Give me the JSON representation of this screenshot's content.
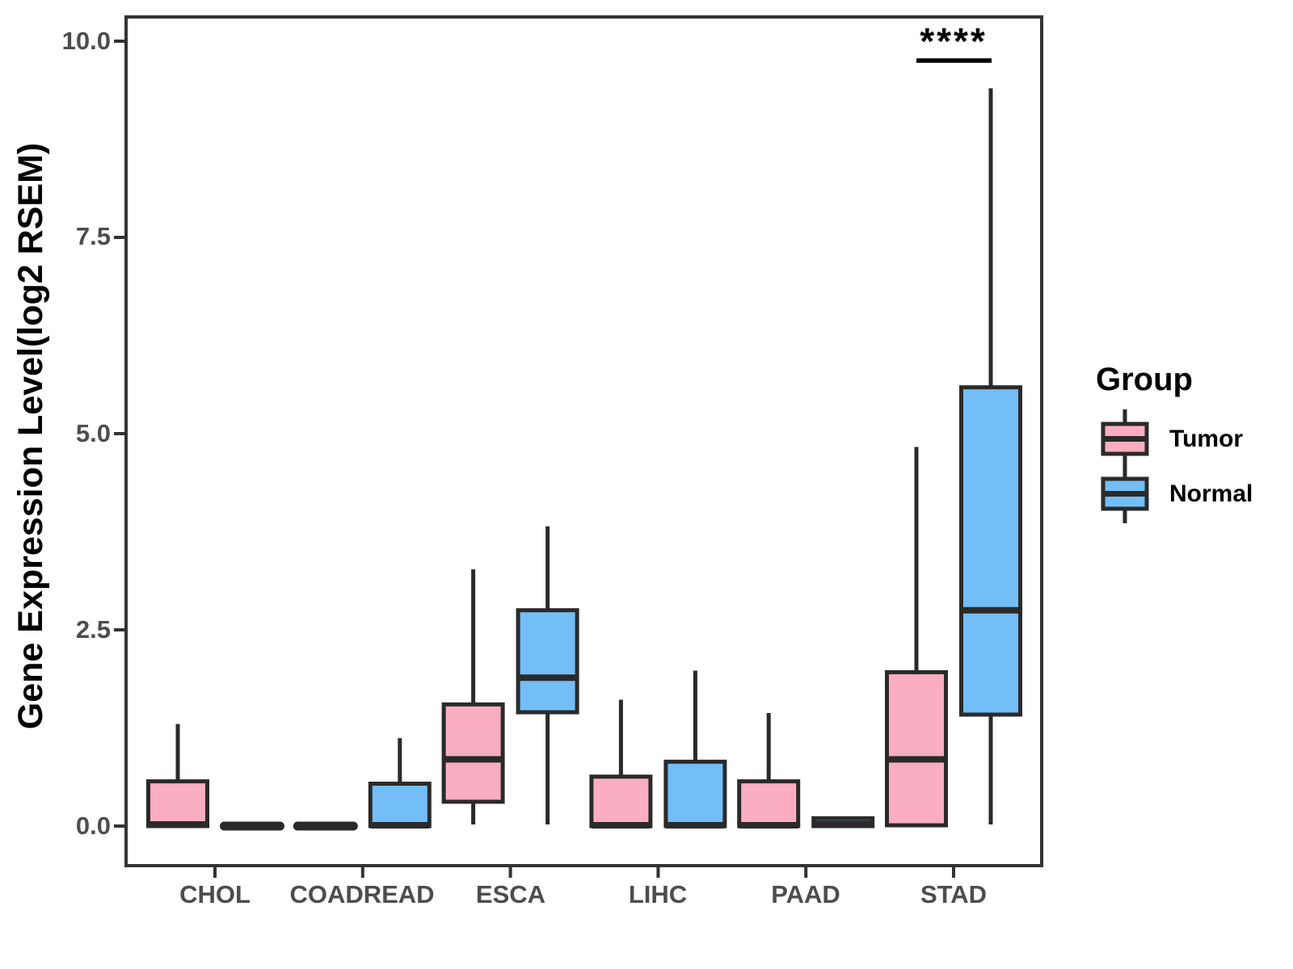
{
  "figure": {
    "background": "#ffffff"
  },
  "axes": {
    "y": {
      "title": "Gene Expression Level(log2 RSEM)",
      "ticks": [
        "10.0",
        "7.5",
        "5.0",
        "2.5",
        "0.0"
      ],
      "tick_values": [
        10.0,
        7.5,
        5.0,
        2.5,
        0.0
      ]
    },
    "x": {
      "categories": [
        "CHOL",
        "COADREAD",
        "ESCA",
        "LIHC",
        "PAAD",
        "STAD"
      ]
    }
  },
  "legend": {
    "title": "Group",
    "entries": [
      {
        "label": "Tumor",
        "color": "#FBAEC1"
      },
      {
        "label": "Normal",
        "color": "#73BEF7"
      }
    ]
  },
  "annotation": {
    "text": "****",
    "category": "STAD"
  },
  "colors": {
    "tumor_fill": "#FBAEC1",
    "normal_fill": "#73BEF7",
    "box_stroke": "#2A2A2A",
    "axis_stroke": "#333333",
    "tick_text": "#4d4d4d"
  },
  "chart_data": {
    "type": "boxplot",
    "title": "",
    "xlabel": "",
    "ylabel": "Gene Expression Level(log2 RSEM)",
    "ylim": [
      -0.5,
      10.3
    ],
    "grid": false,
    "legend_position": "right",
    "categories": [
      "CHOL",
      "COADREAD",
      "ESCA",
      "LIHC",
      "PAAD",
      "STAD"
    ],
    "series": [
      {
        "name": "Tumor",
        "color": "#FBAEC1",
        "boxes": [
          {
            "min": 0.0,
            "q1": 0.0,
            "median": 0.02,
            "q3": 0.57,
            "max": 1.3
          },
          {
            "min": 0.0,
            "q1": 0.0,
            "median": 0.0,
            "q3": 0.0,
            "max": 0.0
          },
          {
            "min": 0.02,
            "q1": 0.31,
            "median": 0.85,
            "q3": 1.55,
            "max": 3.27
          },
          {
            "min": 0.0,
            "q1": 0.0,
            "median": 0.01,
            "q3": 0.63,
            "max": 1.61
          },
          {
            "min": 0.0,
            "q1": 0.0,
            "median": 0.01,
            "q3": 0.57,
            "max": 1.44
          },
          {
            "min": 0.0,
            "q1": 0.01,
            "median": 0.85,
            "q3": 1.96,
            "max": 4.83
          }
        ]
      },
      {
        "name": "Normal",
        "color": "#73BEF7",
        "boxes": [
          {
            "min": 0.0,
            "q1": 0.0,
            "median": 0.0,
            "q3": 0.0,
            "max": 0.0
          },
          {
            "min": 0.0,
            "q1": 0.0,
            "median": 0.01,
            "q3": 0.54,
            "max": 1.12
          },
          {
            "min": 0.02,
            "q1": 1.45,
            "median": 1.89,
            "q3": 2.75,
            "max": 3.82
          },
          {
            "min": 0.0,
            "q1": 0.0,
            "median": 0.01,
            "q3": 0.82,
            "max": 1.98
          },
          {
            "min": 0.0,
            "q1": 0.0,
            "median": 0.03,
            "q3": 0.1,
            "max": 0.1
          },
          {
            "min": 0.02,
            "q1": 1.42,
            "median": 2.75,
            "q3": 5.59,
            "max": 9.4
          }
        ]
      }
    ],
    "significance": [
      {
        "category": "STAD",
        "label": "****"
      }
    ]
  }
}
